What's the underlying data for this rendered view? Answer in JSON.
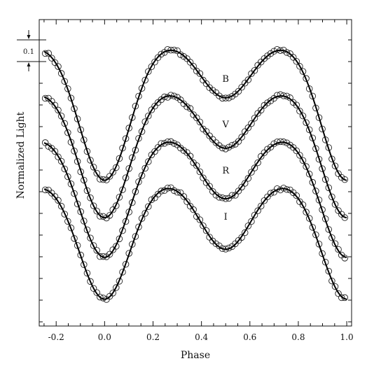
{
  "chart_data": {
    "type": "line",
    "title": "",
    "xlabel": "Phase",
    "ylabel": "Normalized Light",
    "xlim": [
      -0.27,
      1.02
    ],
    "x_ticks": [
      -0.2,
      0.0,
      0.2,
      0.4,
      0.6,
      0.8,
      1.0
    ],
    "x_tick_labels": [
      "-0.2",
      "0.0",
      "0.2",
      "0.4",
      "0.6",
      "0.8",
      "1.0"
    ],
    "scale_bar": {
      "label": "0.1",
      "value": 0.1
    },
    "series_labels_position": "center, above secondary minimum",
    "series": [
      {
        "name": "B",
        "model": {
          "max": 1.0,
          "primary_depth": 0.647,
          "secondary_depth": 0.267
        }
      },
      {
        "name": "V",
        "model": {
          "max": 1.0,
          "primary_depth": 0.61,
          "secondary_depth": 0.29
        }
      },
      {
        "name": "R",
        "model": {
          "max": 1.0,
          "primary_depth": 0.58,
          "secondary_depth": 0.31
        }
      },
      {
        "name": "I",
        "model": {
          "max": 1.0,
          "primary_depth": 0.56,
          "secondary_depth": 0.33
        }
      }
    ],
    "observations_phase_step": 0.0133,
    "observations_scatter": 0.006,
    "grid": false,
    "legend": "none"
  }
}
